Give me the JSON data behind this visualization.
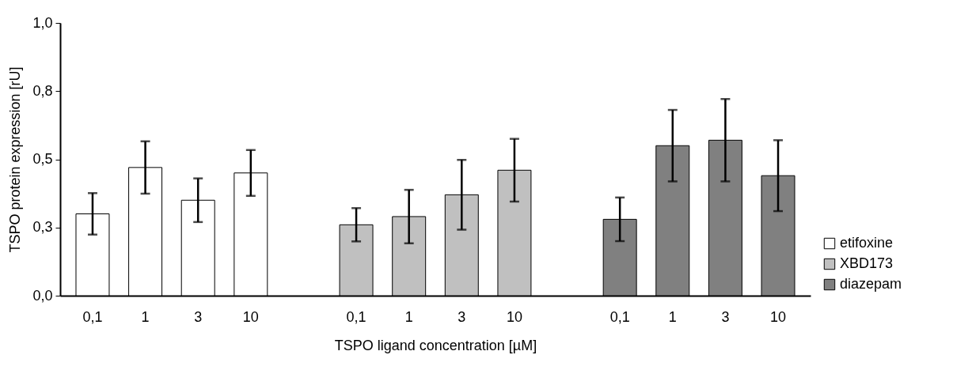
{
  "chart_data": {
    "type": "bar",
    "xlabel": "TSPO ligand concentration [µM]",
    "ylabel": "TSPO protein expression [rU]",
    "categories": [
      "0,1",
      "1",
      "3",
      "10",
      null,
      "0,1",
      "1",
      "3",
      "10",
      null,
      "0,1",
      "1",
      "3",
      "10"
    ],
    "series": [
      {
        "name": "etifoxine",
        "color": "#ffffff",
        "values": [
          0.3,
          0.47,
          0.35,
          0.45,
          null,
          null,
          null,
          null,
          null,
          null,
          null,
          null,
          null,
          null
        ],
        "errors": [
          0.076,
          0.096,
          0.08,
          0.084,
          null,
          null,
          null,
          null,
          null,
          null,
          null,
          null,
          null,
          null
        ]
      },
      {
        "name": "XBD173",
        "color": "#c0c0c0",
        "values": [
          null,
          null,
          null,
          null,
          null,
          0.26,
          0.29,
          0.37,
          0.46,
          null,
          null,
          null,
          null,
          null
        ],
        "errors": [
          null,
          null,
          null,
          null,
          null,
          0.061,
          0.098,
          0.128,
          0.115,
          null,
          null,
          null,
          null,
          null
        ]
      },
      {
        "name": "diazepam",
        "color": "#808080",
        "values": [
          null,
          null,
          null,
          null,
          null,
          null,
          null,
          null,
          null,
          null,
          0.28,
          0.55,
          0.57,
          0.44
        ],
        "errors": [
          null,
          null,
          null,
          null,
          null,
          null,
          null,
          null,
          null,
          null,
          0.08,
          0.131,
          0.151,
          0.13
        ]
      }
    ],
    "ylim": [
      0,
      1
    ],
    "yticks": [
      {
        "value": 0,
        "label": "0,0"
      },
      {
        "value": 0.25,
        "label": "0,3"
      },
      {
        "value": 0.5,
        "label": "0,5"
      },
      {
        "value": 0.75,
        "label": "0,8"
      },
      {
        "value": 1,
        "label": "1,0"
      }
    ],
    "grid": false,
    "legend": "right"
  }
}
